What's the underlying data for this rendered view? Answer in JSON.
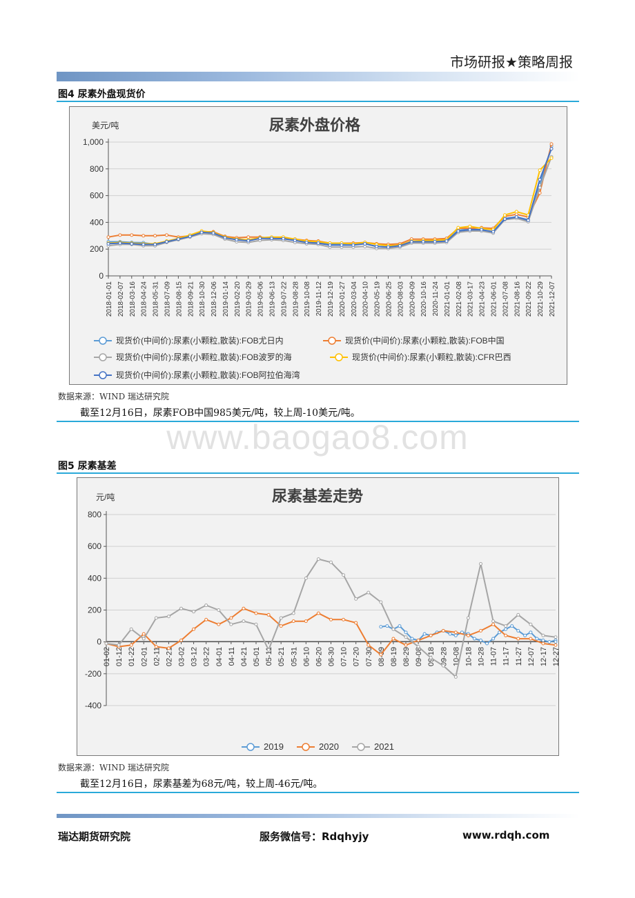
{
  "header": {
    "title": "市场研报★策略周报"
  },
  "figure1": {
    "caption": "图4 尿素外盘现货价",
    "source": "数据来源：WIND 瑞达研究院",
    "note": "截至12月16日，尿素FOB中国985美元/吨，较上周-10美元/吨。"
  },
  "figure2": {
    "caption": "图5 尿素基差",
    "source": "数据来源：WIND 瑞达研究院",
    "note": "截至12月16日，尿素基差为68元/吨，较上周-46元/吨。"
  },
  "watermark": "www.baogao8.com",
  "footer": {
    "org": "瑞达期货研究院",
    "wechat": "服务微信号：Rdqhyjy",
    "site": "www.rdqh.com"
  },
  "chart_data": [
    {
      "type": "line",
      "title": "尿素外盘价格",
      "ylabel": "美元/吨",
      "ylim": [
        0,
        1000
      ],
      "yticks": [
        "0",
        "200",
        "400",
        "600",
        "800",
        "1,000"
      ],
      "x_ticks": [
        "2018-01-01",
        "2018-02-07",
        "2018-03-16",
        "2018-04-24",
        "2018-05-31",
        "2018-07-09",
        "2018-08-15",
        "2018-09-21",
        "2018-10-30",
        "2018-12-06",
        "2019-01-14",
        "2019-02-20",
        "2019-03-29",
        "2019-05-06",
        "2019-06-13",
        "2019-07-22",
        "2019-08-28",
        "2019-10-08",
        "2019-11-12",
        "2019-12-19",
        "2020-01-27",
        "2020-03-04",
        "2020-04-10",
        "2020-05-19",
        "2020-06-25",
        "2020-08-03",
        "2020-09-09",
        "2020-10-16",
        "2020-11-24",
        "2021-01-01",
        "2021-02-08",
        "2021-03-17",
        "2021-04-23",
        "2021-06-01",
        "2021-07-08",
        "2021-08-16",
        "2021-09-22",
        "2021-10-29",
        "2021-12-07"
      ],
      "grid": true,
      "legend_position": "bottom",
      "series": [
        {
          "name": "现货价(中间价):尿素(小颗粒,散装):FOB尤日内",
          "color": "#5b9bd5",
          "values": [
            255,
            255,
            250,
            248,
            235,
            255,
            280,
            300,
            330,
            320,
            295,
            280,
            265,
            280,
            285,
            285,
            270,
            255,
            250,
            235,
            240,
            240,
            240,
            220,
            215,
            230,
            260,
            260,
            260,
            265,
            340,
            350,
            345,
            330,
            430,
            440,
            420,
            680,
            970
          ]
        },
        {
          "name": "现货价(中间价):尿素(小颗粒,散装):FOB中国",
          "color": "#ed7d31",
          "values": [
            290,
            305,
            305,
            300,
            300,
            305,
            290,
            300,
            330,
            330,
            295,
            285,
            290,
            290,
            280,
            285,
            275,
            265,
            260,
            245,
            245,
            245,
            250,
            240,
            235,
            240,
            275,
            275,
            275,
            280,
            355,
            355,
            360,
            355,
            445,
            460,
            440,
            620,
            985
          ]
        },
        {
          "name": "现货价(中间价):尿素(小颗粒,散装):FOB波罗的海",
          "color": "#a5a5a5",
          "values": [
            225,
            235,
            235,
            225,
            225,
            250,
            270,
            290,
            315,
            310,
            275,
            255,
            250,
            265,
            270,
            265,
            250,
            240,
            235,
            215,
            215,
            215,
            220,
            205,
            205,
            215,
            245,
            245,
            245,
            250,
            325,
            335,
            335,
            320,
            420,
            430,
            405,
            660,
            890
          ]
        },
        {
          "name": "现货价(中间价):尿素(小颗粒,散装):CFR巴西",
          "color": "#ffc000",
          "values": [
            245,
            250,
            245,
            240,
            240,
            260,
            280,
            305,
            335,
            325,
            290,
            275,
            270,
            285,
            290,
            290,
            275,
            260,
            255,
            245,
            245,
            240,
            250,
            235,
            225,
            230,
            260,
            265,
            265,
            270,
            360,
            370,
            355,
            345,
            455,
            480,
            455,
            790,
            880
          ]
        },
        {
          "name": "现货价(中间价):尿素(小颗粒,散装):FOB阿拉伯海湾",
          "color": "#4472c4",
          "values": [
            240,
            245,
            240,
            235,
            235,
            255,
            275,
            295,
            325,
            320,
            285,
            270,
            262,
            280,
            280,
            278,
            265,
            250,
            245,
            230,
            230,
            230,
            240,
            220,
            215,
            225,
            255,
            255,
            255,
            260,
            335,
            345,
            345,
            330,
            425,
            440,
            415,
            720,
            950
          ]
        }
      ]
    },
    {
      "type": "line",
      "title": "尿素基差走势",
      "ylabel": "元/吨",
      "ylim": [
        -400,
        800
      ],
      "yticks": [
        "-400",
        "-200",
        "0",
        "200",
        "400",
        "600",
        "800"
      ],
      "x_ticks": [
        "01-02",
        "01-12",
        "01-22",
        "02-01",
        "02-11",
        "02-21",
        "03-02",
        "03-12",
        "03-22",
        "04-01",
        "04-11",
        "04-21",
        "05-01",
        "05-11",
        "05-21",
        "05-31",
        "06-10",
        "06-20",
        "06-30",
        "07-10",
        "07-20",
        "07-30",
        "08-09",
        "08-19",
        "08-29",
        "09-08",
        "09-18",
        "09-28",
        "10-08",
        "10-18",
        "10-28",
        "11-07",
        "11-17",
        "11-27",
        "12-07",
        "12-17",
        "12-27"
      ],
      "grid": true,
      "legend_position": "bottom",
      "series": [
        {
          "name": "2019",
          "color": "#5b9bd5",
          "x": [
            "08-09",
            "08-14",
            "08-19",
            "08-24",
            "08-29",
            "09-03",
            "09-08",
            "09-13",
            "09-18",
            "09-23",
            "09-28",
            "10-03",
            "10-08",
            "10-13",
            "10-18",
            "10-23",
            "10-28",
            "11-02",
            "11-07",
            "11-12",
            "11-17",
            "11-22",
            "11-27",
            "12-02",
            "12-07",
            "12-12",
            "12-17",
            "12-22",
            "12-27",
            "12-31"
          ],
          "values": [
            95,
            100,
            80,
            100,
            60,
            20,
            10,
            50,
            40,
            60,
            70,
            50,
            40,
            60,
            50,
            20,
            10,
            -10,
            20,
            60,
            80,
            100,
            70,
            40,
            60,
            20,
            10,
            0,
            10,
            0
          ]
        },
        {
          "name": "2020",
          "color": "#ed7d31",
          "values": [
            -10,
            -30,
            -20,
            50,
            -30,
            -40,
            10,
            80,
            140,
            110,
            150,
            210,
            180,
            170,
            100,
            130,
            130,
            180,
            140,
            140,
            120,
            -20,
            -80,
            20,
            -20,
            10,
            40,
            70,
            60,
            40,
            70,
            110,
            40,
            20,
            20,
            -10,
            -20
          ]
        },
        {
          "name": "2021",
          "color": "#a5a5a5",
          "values": [
            -10,
            -20,
            80,
            20,
            150,
            160,
            210,
            190,
            230,
            200,
            110,
            130,
            110,
            -50,
            150,
            180,
            400,
            520,
            500,
            420,
            270,
            310,
            250,
            80,
            30,
            -30,
            -100,
            -150,
            -220,
            150,
            490,
            130,
            100,
            170,
            110,
            40,
            30
          ]
        }
      ]
    }
  ]
}
